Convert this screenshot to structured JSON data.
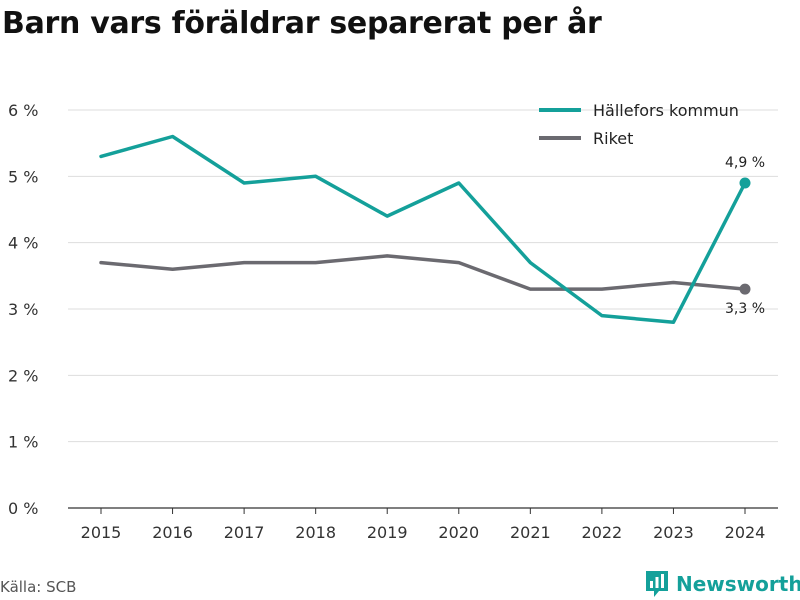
{
  "title": "Barn vars föräldrar separerat per år",
  "source": "Källa: SCB",
  "brand": "Newsworthy",
  "chart_data": {
    "type": "line",
    "title": "Barn vars föräldrar separerat per år",
    "xlabel": "",
    "ylabel": "",
    "x": [
      2015,
      2016,
      2017,
      2018,
      2019,
      2020,
      2021,
      2022,
      2023,
      2024
    ],
    "x_tick_labels": [
      "2015",
      "2016",
      "2017",
      "2018",
      "2019",
      "2020",
      "2021",
      "2022",
      "2023",
      "2024"
    ],
    "ylim": [
      0,
      6
    ],
    "y_ticks": [
      0,
      1,
      2,
      3,
      4,
      5,
      6
    ],
    "y_tick_labels": [
      "0 %",
      "1 %",
      "2 %",
      "3 %",
      "4 %",
      "5 %",
      "6 %"
    ],
    "grid": true,
    "legend_position": "top-right",
    "series": [
      {
        "name": "Hällefors kommun",
        "color": "#14a09a",
        "values": [
          5.3,
          5.6,
          4.9,
          5.0,
          4.4,
          4.9,
          3.7,
          2.9,
          2.8,
          4.9
        ],
        "end_label": "4,9 %"
      },
      {
        "name": "Riket",
        "color": "#6b6a70",
        "values": [
          3.7,
          3.6,
          3.7,
          3.7,
          3.8,
          3.7,
          3.3,
          3.3,
          3.4,
          3.3
        ],
        "end_label": "3,3 %"
      }
    ]
  }
}
